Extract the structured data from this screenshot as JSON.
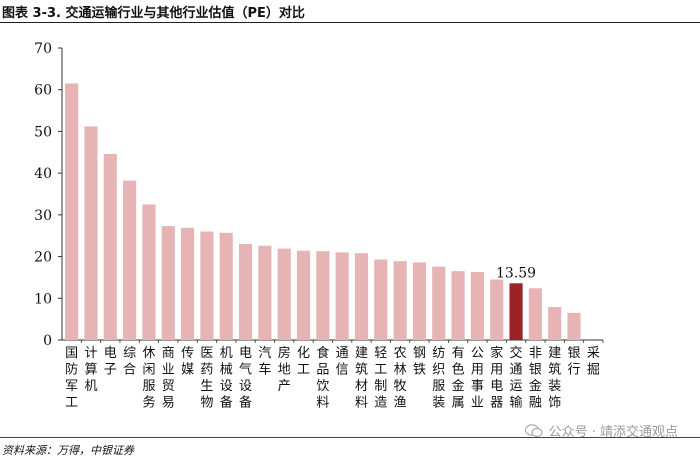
{
  "figure": {
    "title": "图表 3-3. 交通运输行业与其他行业估值（PE）对比",
    "source": "资料来源：万得，中银证券"
  },
  "watermark": {
    "icon": "wechat-icon",
    "text": "公众号 · 靖添交通观点"
  },
  "chart_data": {
    "type": "bar",
    "title": "",
    "xlabel": "",
    "ylabel": "",
    "ylim": [
      0,
      70
    ],
    "yticks": [
      "0",
      "10",
      "20",
      "30",
      "40",
      "50",
      "60",
      "70"
    ],
    "grid": false,
    "categories": [
      "国防军工",
      "计算机",
      "电子",
      "综合",
      "休闲服务",
      "商业贸易",
      "传媒",
      "医药生物",
      "机械设备",
      "电气设备",
      "汽车",
      "房地产",
      "化工",
      "食品饮料",
      "通信",
      "建筑材料",
      "轻工制造",
      "农林牧渔",
      "钢铁",
      "纺织服装",
      "有色金属",
      "公用事业",
      "家用电器",
      "交通运输",
      "非银金融",
      "建筑装饰",
      "银行",
      "采掘"
    ],
    "values": [
      61.5,
      51.2,
      44.6,
      38.2,
      32.5,
      27.3,
      26.9,
      26.0,
      25.7,
      23.0,
      22.6,
      21.9,
      21.4,
      21.3,
      21.0,
      20.8,
      19.3,
      18.9,
      18.6,
      17.6,
      16.5,
      16.3,
      14.5,
      13.59,
      12.4,
      7.9,
      6.5,
      0
    ],
    "highlight": {
      "category": "交通运输",
      "label": "13.59"
    },
    "colors": {
      "bar": "#E6B4B4",
      "highlight": "#9B2226",
      "axis": "#333333"
    }
  }
}
